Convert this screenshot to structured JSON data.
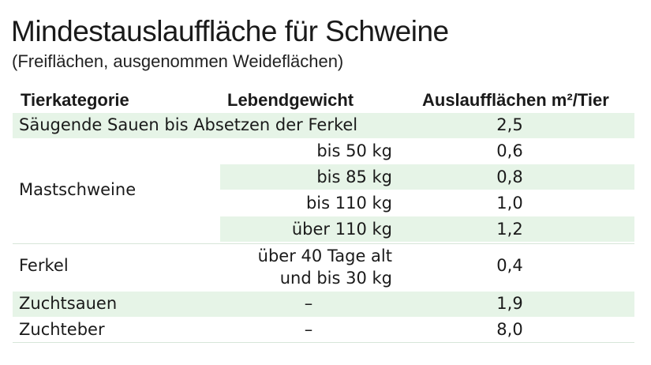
{
  "title": "Mindestauslauffläche für Schweine",
  "subtitle": "(Freiflächen, ausgenommen Weideflächen)",
  "headers": {
    "category": "Tierkategorie",
    "weight": "Lebendgewicht",
    "area": "Auslaufflächen m²/Tier"
  },
  "rows": {
    "saugende_sauen": {
      "category": "Säugende Sauen bis Absetzen der Ferkel",
      "area": "2,5"
    },
    "mastschweine": {
      "category": "Mastschweine",
      "sub": [
        {
          "weight": "bis 50 kg",
          "area": "0,6"
        },
        {
          "weight": "bis 85 kg",
          "area": "0,8"
        },
        {
          "weight": "bis 110 kg",
          "area": "1,0"
        },
        {
          "weight": "über 110 kg",
          "area": "1,2"
        }
      ]
    },
    "ferkel": {
      "category": "Ferkel",
      "weight_line1": "über 40 Tage alt",
      "weight_line2": "und bis 30 kg",
      "area": "0,4"
    },
    "zuchtsauen": {
      "category": "Zuchtsauen",
      "weight": "–",
      "area": "1,9"
    },
    "zuchteber": {
      "category": "Zuchteber",
      "weight": "–",
      "area": "8,0"
    }
  },
  "colors": {
    "band": "#e6f4e7",
    "rule": "#d7e6d9",
    "text": "#1a1a1a"
  }
}
